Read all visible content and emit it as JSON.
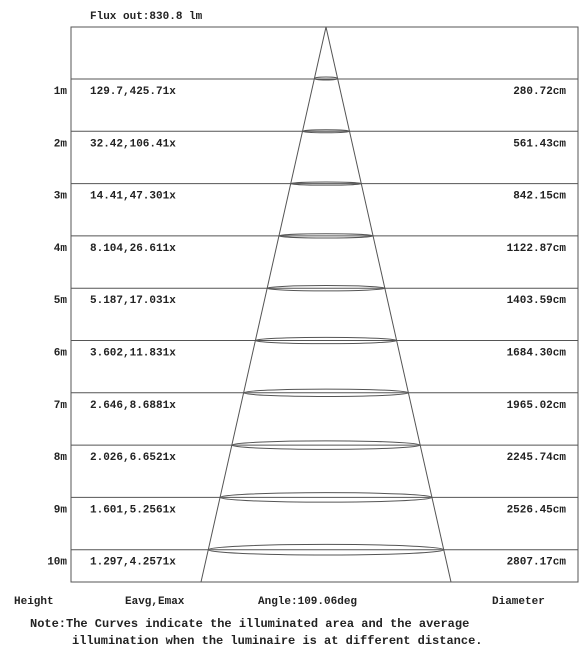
{
  "flux_label": "Flux out:830.8 lm",
  "chart_data": {
    "type": "table",
    "rows": [
      {
        "height": "1m",
        "eavg_emax": "129.7,425.71x",
        "diameter": "280.72cm"
      },
      {
        "height": "2m",
        "eavg_emax": "32.42,106.41x",
        "diameter": "561.43cm"
      },
      {
        "height": "3m",
        "eavg_emax": "14.41,47.301x",
        "diameter": "842.15cm"
      },
      {
        "height": "4m",
        "eavg_emax": "8.104,26.611x",
        "diameter": "1122.87cm"
      },
      {
        "height": "5m",
        "eavg_emax": "5.187,17.031x",
        "diameter": "1403.59cm"
      },
      {
        "height": "6m",
        "eavg_emax": "3.602,11.831x",
        "diameter": "1684.30cm"
      },
      {
        "height": "7m",
        "eavg_emax": "2.646,8.6881x",
        "diameter": "1965.02cm"
      },
      {
        "height": "8m",
        "eavg_emax": "2.026,6.6521x",
        "diameter": "2245.74cm"
      },
      {
        "height": "9m",
        "eavg_emax": "1.601,5.2561x",
        "diameter": "2526.45cm"
      },
      {
        "height": "10m",
        "eavg_emax": "1.297,4.2571x",
        "diameter": "2807.17cm"
      }
    ]
  },
  "footer": {
    "height_label": "Height",
    "eavg_label": "Eavg,Emax",
    "angle_label": "Angle:109.06deg",
    "diameter_label": "Diameter"
  },
  "note": {
    "line1": "Note:The Curves indicate the illuminated area and the average",
    "line2": "illumination when the luminaire is at different distance."
  }
}
